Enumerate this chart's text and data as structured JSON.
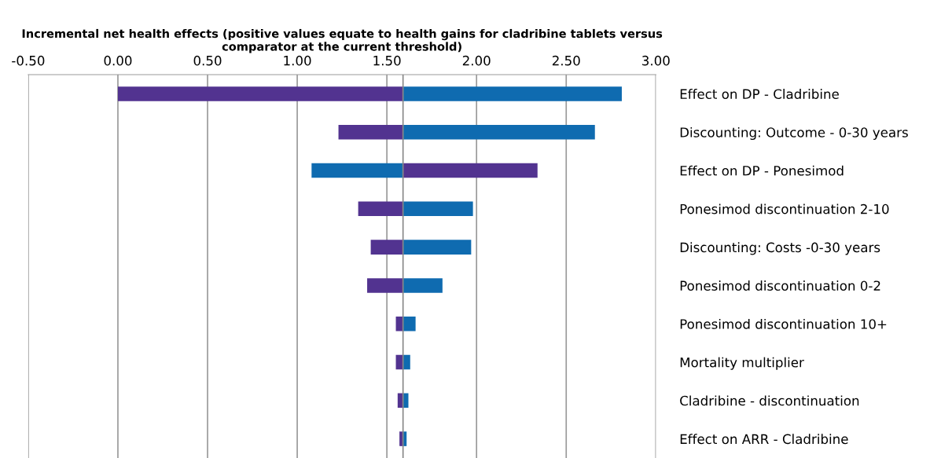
{
  "chart_data": {
    "type": "bar",
    "orientation": "horizontal",
    "xlabel": "Incremental net health effects (positive values equate to health gains for cladribine tablets versus comparator at the current threshold)",
    "categories": [
      "Effect on DP - Cladribine",
      "Discounting: Outcome - 0-30 years",
      "Effect on DP - Ponesimod",
      "Ponesimod discontinuation 2-10",
      "Discounting: Costs -0-30 years",
      "Ponesimod discontinuation 0-2",
      "Ponesimod discontinuation 10+",
      "Mortality multiplier",
      "Cladribine - discontinuation",
      "Effect on ARR - Cladribine"
    ],
    "series": [
      {
        "color": "#523390",
        "base": [
          0.0,
          1.23,
          1.59,
          1.34,
          1.41,
          1.39,
          1.55,
          1.55,
          1.56,
          1.57
        ],
        "values": [
          1.59,
          0.36,
          0.75,
          0.25,
          0.18,
          0.2,
          0.04,
          0.04,
          0.03,
          0.02
        ]
      },
      {
        "color": "#0f6bb0",
        "base": [
          1.59,
          1.59,
          1.08,
          1.59,
          1.59,
          1.59,
          1.59,
          1.59,
          1.59,
          1.59
        ],
        "values": [
          1.22,
          1.07,
          0.51,
          0.39,
          0.38,
          0.22,
          0.07,
          0.04,
          0.03,
          0.02
        ]
      }
    ],
    "ref_lines": [
      {
        "axis": "x",
        "value": 1.59,
        "color": "#888888"
      }
    ],
    "xlim": [
      -0.5,
      3.0
    ],
    "xticks": [
      {
        "value": -0.5,
        "label": "-0.50"
      },
      {
        "value": 0,
        "label": "0.00"
      },
      {
        "value": 0.5,
        "label": "0.50"
      },
      {
        "value": 1.0,
        "label": "1.00"
      },
      {
        "value": 1.5,
        "label": "1.50"
      },
      {
        "value": 2.0,
        "label": "2.00"
      },
      {
        "value": 2.5,
        "label": "2.50"
      },
      {
        "value": 3.0,
        "label": "3.00"
      }
    ],
    "grid": "x",
    "legend": false
  }
}
